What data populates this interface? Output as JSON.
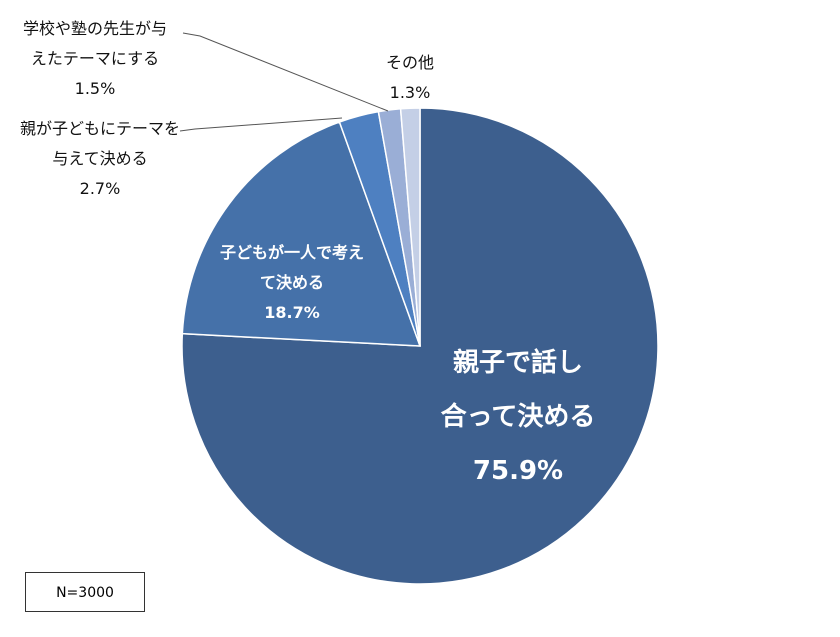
{
  "chart_data": {
    "type": "pie",
    "categories": [
      "親子で話し\n合って決める",
      "子どもが一人で考え\nて決める",
      "親が子どもにテーマを\n与えて決める",
      "学校や塾の先生が与\nえたテーマにする",
      "その他"
    ],
    "values": [
      75.9,
      18.7,
      2.7,
      1.5,
      1.3
    ],
    "value_labels": [
      "75.9%",
      "18.7%",
      "2.7%",
      "1.5%",
      "1.3%"
    ],
    "colors": [
      "#3d5f8e",
      "#4571a9",
      "#4e80c1",
      "#9aaed6",
      "#c4cfe6"
    ],
    "annotation": "N=3000"
  }
}
